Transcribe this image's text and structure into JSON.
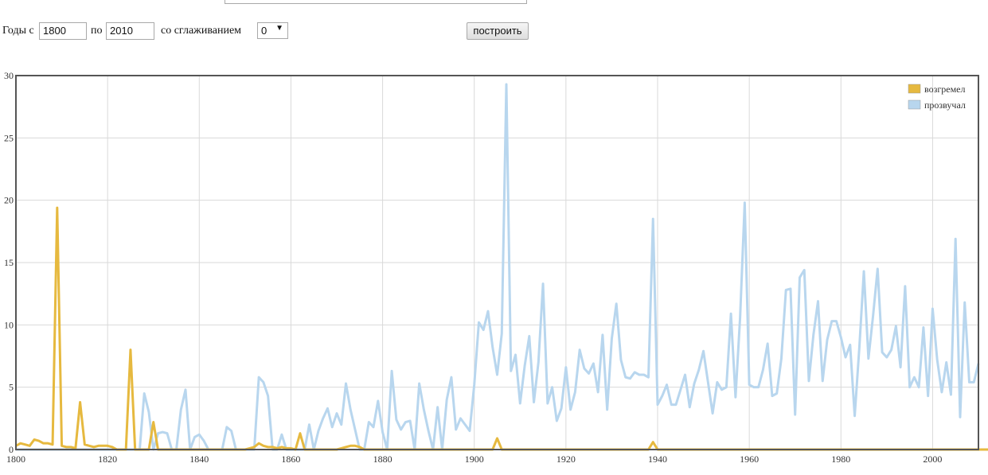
{
  "form": {
    "years_from_label": "Годы с",
    "year_from": "1800",
    "to_label": "по",
    "year_to": "2010",
    "smoothing_label": "со сглаживанием",
    "smoothing_value": "0",
    "build_button": "построить"
  },
  "chart_data": {
    "type": "line",
    "title": "",
    "xlabel": "",
    "ylabel": "",
    "xlim": [
      1800,
      2010
    ],
    "ylim": [
      0,
      30
    ],
    "grid": true,
    "legend_position": "top-right",
    "x_ticks": [
      "1800",
      "1820",
      "1840",
      "1860",
      "1880",
      "1900",
      "1920",
      "1940",
      "1960",
      "1980",
      "2000"
    ],
    "y_ticks": [
      "0",
      "5",
      "10",
      "15",
      "20",
      "25",
      "30"
    ],
    "x_start": 1800,
    "series": [
      {
        "name": "возгремел",
        "color": "#e6b93f",
        "values": [
          0.3,
          0.5,
          0.4,
          0.3,
          0.8,
          0.7,
          0.5,
          0.5,
          0.4,
          19.4,
          0.3,
          0.2,
          0.2,
          0.1,
          3.8,
          0.4,
          0.3,
          0.2,
          0.3,
          0.3,
          0.3,
          0.2,
          0,
          0,
          0,
          8.0,
          0,
          0,
          0,
          0,
          2.2,
          0,
          0,
          0,
          0,
          0,
          0,
          0,
          0,
          0,
          0,
          0,
          0,
          0,
          0,
          0,
          0,
          0,
          0,
          0,
          0,
          0.1,
          0.2,
          0.5,
          0.3,
          0.2,
          0.2,
          0.1,
          0.2,
          0.1,
          0.1,
          0,
          1.3,
          0,
          0,
          0,
          0,
          0,
          0,
          0,
          0,
          0.1,
          0.2,
          0.3,
          0.3,
          0.2,
          0,
          0,
          0,
          0,
          0,
          0,
          0,
          0,
          0,
          0,
          0,
          0,
          0,
          0,
          0,
          0,
          0,
          0,
          0,
          0,
          0,
          0,
          0,
          0,
          0,
          0,
          0,
          0,
          0,
          0.9,
          0,
          0,
          0,
          0,
          0,
          0,
          0,
          0,
          0,
          0,
          0,
          0,
          0,
          0,
          0,
          0,
          0,
          0,
          0,
          0,
          0,
          0,
          0,
          0,
          0,
          0,
          0,
          0,
          0,
          0,
          0,
          0,
          0,
          0.6,
          0,
          0,
          0,
          0,
          0,
          0,
          0,
          0,
          0,
          0,
          0,
          0,
          0,
          0,
          0,
          0,
          0,
          0,
          0,
          0,
          0,
          0,
          0,
          0,
          0,
          0,
          0,
          0,
          0,
          0,
          0,
          0,
          0,
          0,
          0,
          0,
          0,
          0,
          0,
          0,
          0,
          0,
          0,
          0,
          0,
          0,
          0,
          0,
          0,
          0,
          0,
          0,
          0,
          0,
          0,
          0,
          0,
          0,
          0,
          0,
          0,
          0,
          0,
          0,
          0,
          0,
          0,
          0,
          0,
          0,
          0,
          0,
          0,
          0,
          0,
          0,
          0,
          0,
          0,
          0,
          0,
          0,
          0,
          0,
          0.4
        ]
      },
      {
        "name": "прозвучал",
        "color": "#b8d6ee",
        "values": [
          0,
          0,
          0,
          0,
          0,
          0,
          0,
          0,
          0,
          0,
          0,
          0,
          0,
          0,
          0,
          0,
          0,
          0,
          0,
          0,
          0,
          0,
          0,
          0,
          0,
          0,
          0,
          0,
          4.5,
          3.0,
          0,
          1.3,
          1.4,
          1.3,
          0,
          0,
          3.2,
          4.8,
          0,
          1.0,
          1.2,
          0.7,
          0,
          0,
          0,
          0,
          1.8,
          1.5,
          0,
          0,
          0,
          0,
          0,
          5.8,
          5.4,
          4.3,
          0,
          0,
          1.2,
          0,
          0,
          0,
          0,
          0,
          2.0,
          0,
          1.5,
          2.5,
          3.3,
          1.8,
          2.9,
          2.0,
          5.3,
          3.2,
          1.6,
          0,
          0,
          2.2,
          1.8,
          3.9,
          1.4,
          0,
          6.3,
          2.4,
          1.6,
          2.2,
          2.3,
          0,
          5.3,
          3.2,
          1.5,
          0,
          3.4,
          0,
          4.0,
          5.8,
          1.6,
          2.5,
          2.0,
          1.5,
          5.2,
          10.2,
          9.6,
          11.1,
          8.2,
          6.0,
          9.3,
          29.3,
          6.3,
          7.6,
          3.7,
          6.7,
          9.1,
          3.8,
          7.0,
          13.3,
          3.7,
          5.0,
          2.3,
          3.3,
          6.6,
          3.2,
          4.6,
          8.0,
          6.5,
          6.1,
          6.9,
          4.6,
          9.2,
          3.2,
          8.9,
          11.7,
          7.2,
          5.8,
          5.7,
          6.2,
          6.0,
          6.0,
          5.8,
          18.5,
          3.6,
          4.3,
          5.2,
          3.6,
          3.6,
          4.8,
          6.0,
          3.4,
          5.3,
          6.4,
          7.9,
          5.4,
          2.9,
          5.4,
          4.8,
          5.0,
          10.9,
          4.2,
          10.6,
          19.8,
          5.2,
          5.0,
          5.0,
          6.4,
          8.5,
          4.3,
          4.5,
          7.3,
          12.8,
          12.9,
          2.8,
          13.8,
          14.4,
          5.5,
          9.2,
          11.9,
          5.5,
          8.8,
          10.3,
          10.3,
          9.0,
          7.4,
          8.4,
          2.7,
          8.1,
          14.3,
          7.3,
          10.7,
          14.5,
          7.8,
          7.4,
          8.0,
          9.9,
          6.6,
          13.1,
          5.0,
          5.8,
          5.0,
          9.8,
          4.3,
          11.3,
          7.2,
          4.6,
          7.0,
          4.4,
          16.9,
          2.6,
          11.8,
          5.4,
          5.4,
          6.9
        ]
      }
    ]
  }
}
